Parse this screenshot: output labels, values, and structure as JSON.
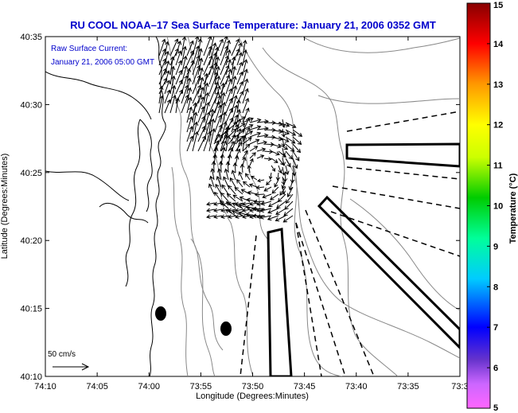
{
  "title": "RU COOL  NOAA–17  Sea Surface Temperature:  January 21, 2006 0352 GMT",
  "annotation": {
    "line1": "Raw Surface Current:",
    "line2": "January 21, 2006 05:00 GMT"
  },
  "axes": {
    "xlabel": "Longitude (Degrees:Minutes)",
    "ylabel": "Latitude (Degrees:Minutes)",
    "xticks": [
      "74:10",
      "74:05",
      "74:00",
      "73:55",
      "73:50",
      "73:45",
      "73:40",
      "73:35",
      "73:3"
    ],
    "yticks": [
      "40:35",
      "40:30",
      "40:25",
      "40:20",
      "40:15",
      "40:10"
    ]
  },
  "scale_label": "50 cm/s",
  "colorbar": {
    "label": "Temperature (°C)",
    "ticks": [
      "15",
      "14",
      "13",
      "12",
      "11",
      "10",
      "9",
      "8",
      "7",
      "6",
      "5"
    ],
    "min": 5,
    "max": 15,
    "colors": [
      "#ff66ff",
      "#6600cc",
      "#0000ff",
      "#00ccff",
      "#00ff99",
      "#00cc00",
      "#ccff00",
      "#ffff00",
      "#ff9900",
      "#ff0000",
      "#880000"
    ]
  },
  "colors": {
    "title": "#0000cc",
    "annotation": "#0000cc",
    "coast": "#000000",
    "contour": "#888888"
  },
  "icons": [
    "vector-arrow",
    "buoy-marker",
    "scale-arrow"
  ]
}
